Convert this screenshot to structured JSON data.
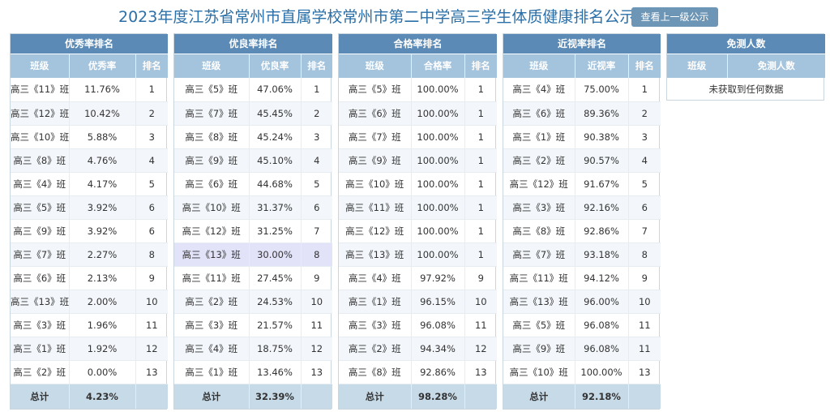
{
  "header": {
    "title": "2023年度江苏省常州市直属学校常州市第二中学高三学生体质健康排名公示",
    "up_button": "查看上一级公示"
  },
  "excellent": {
    "title": "优秀率排名",
    "columns": [
      "班级",
      "优秀率",
      "排名"
    ],
    "rows": [
      [
        "高三《11》班",
        "11.76%",
        "1"
      ],
      [
        "高三《12》班",
        "10.42%",
        "2"
      ],
      [
        "高三《10》班",
        "5.88%",
        "3"
      ],
      [
        "高三《8》班",
        "4.76%",
        "4"
      ],
      [
        "高三《4》班",
        "4.17%",
        "5"
      ],
      [
        "高三《5》班",
        "3.92%",
        "6"
      ],
      [
        "高三《9》班",
        "3.92%",
        "6"
      ],
      [
        "高三《7》班",
        "2.27%",
        "8"
      ],
      [
        "高三《6》班",
        "2.13%",
        "9"
      ],
      [
        "高三《13》班",
        "2.00%",
        "10"
      ],
      [
        "高三《3》班",
        "1.96%",
        "11"
      ],
      [
        "高三《1》班",
        "1.92%",
        "12"
      ],
      [
        "高三《2》班",
        "0.00%",
        "13"
      ]
    ],
    "total": [
      "总计",
      "4.23%",
      ""
    ]
  },
  "good": {
    "title": "优良率排名",
    "columns": [
      "班级",
      "优良率",
      "排名"
    ],
    "rows": [
      [
        "高三《5》班",
        "47.06%",
        "1"
      ],
      [
        "高三《7》班",
        "45.45%",
        "2"
      ],
      [
        "高三《8》班",
        "45.24%",
        "3"
      ],
      [
        "高三《9》班",
        "45.10%",
        "4"
      ],
      [
        "高三《6》班",
        "44.68%",
        "5"
      ],
      [
        "高三《10》班",
        "31.37%",
        "6"
      ],
      [
        "高三《12》班",
        "31.25%",
        "7"
      ],
      [
        "高三《13》班",
        "30.00%",
        "8"
      ],
      [
        "高三《11》班",
        "27.45%",
        "9"
      ],
      [
        "高三《2》班",
        "24.53%",
        "10"
      ],
      [
        "高三《3》班",
        "21.57%",
        "11"
      ],
      [
        "高三《4》班",
        "18.75%",
        "12"
      ],
      [
        "高三《1》班",
        "13.46%",
        "13"
      ]
    ],
    "highlight_row": 7,
    "total": [
      "总计",
      "32.39%",
      ""
    ]
  },
  "pass": {
    "title": "合格率排名",
    "columns": [
      "班级",
      "合格率",
      "排名"
    ],
    "rows": [
      [
        "高三《5》班",
        "100.00%",
        "1"
      ],
      [
        "高三《6》班",
        "100.00%",
        "1"
      ],
      [
        "高三《7》班",
        "100.00%",
        "1"
      ],
      [
        "高三《9》班",
        "100.00%",
        "1"
      ],
      [
        "高三《10》班",
        "100.00%",
        "1"
      ],
      [
        "高三《11》班",
        "100.00%",
        "1"
      ],
      [
        "高三《12》班",
        "100.00%",
        "1"
      ],
      [
        "高三《13》班",
        "100.00%",
        "1"
      ],
      [
        "高三《4》班",
        "97.92%",
        "9"
      ],
      [
        "高三《1》班",
        "96.15%",
        "10"
      ],
      [
        "高三《3》班",
        "96.08%",
        "11"
      ],
      [
        "高三《2》班",
        "94.34%",
        "12"
      ],
      [
        "高三《8》班",
        "92.86%",
        "13"
      ]
    ],
    "total": [
      "总计",
      "98.28%",
      ""
    ]
  },
  "myopia": {
    "title": "近视率排名",
    "columns": [
      "班级",
      "近视率",
      "排名"
    ],
    "rows": [
      [
        "高三《4》班",
        "75.00%",
        "1"
      ],
      [
        "高三《6》班",
        "89.36%",
        "2"
      ],
      [
        "高三《1》班",
        "90.38%",
        "3"
      ],
      [
        "高三《2》班",
        "90.57%",
        "4"
      ],
      [
        "高三《12》班",
        "91.67%",
        "5"
      ],
      [
        "高三《3》班",
        "92.16%",
        "6"
      ],
      [
        "高三《8》班",
        "92.86%",
        "7"
      ],
      [
        "高三《7》班",
        "93.18%",
        "8"
      ],
      [
        "高三《11》班",
        "94.12%",
        "9"
      ],
      [
        "高三《13》班",
        "96.00%",
        "10"
      ],
      [
        "高三《5》班",
        "96.08%",
        "11"
      ],
      [
        "高三《9》班",
        "96.08%",
        "11"
      ],
      [
        "高三《10》班",
        "100.00%",
        "13"
      ]
    ],
    "total": [
      "总计",
      "92.18%",
      ""
    ]
  },
  "exempt": {
    "title": "免测人数",
    "columns": [
      "班级",
      "免测人数"
    ],
    "empty_message": "未获取到任何数据"
  },
  "colors": {
    "title_text": "#2a6fa8",
    "panel_header": "#5a8ab5",
    "column_header": "#a4c3dd",
    "total_row": "#c7dae8",
    "highlight_row": "#e2e3f9"
  }
}
